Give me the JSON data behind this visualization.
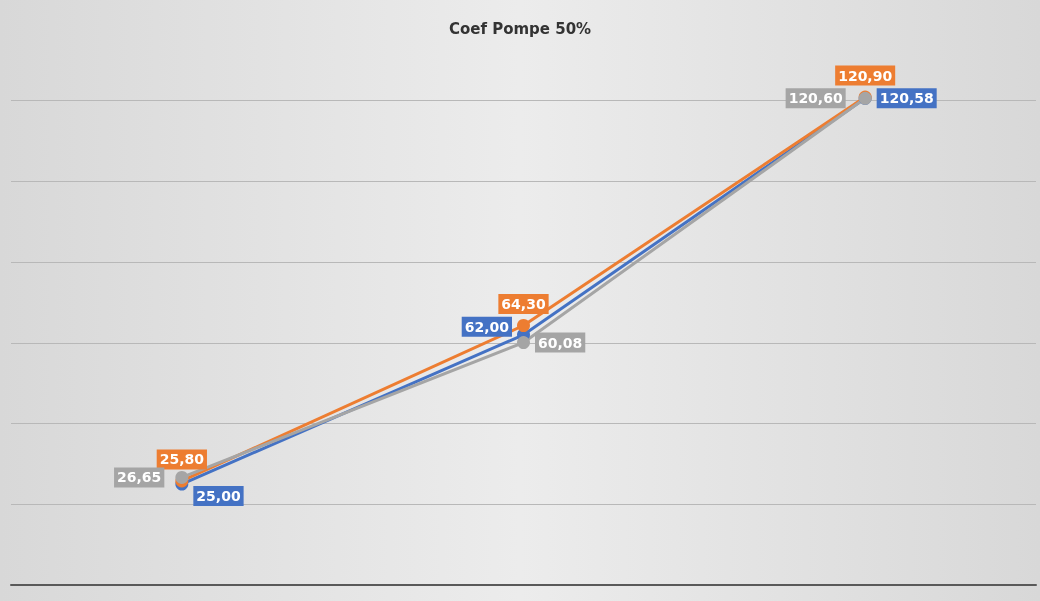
{
  "chart_data": {
    "type": "line",
    "title": "Coef Pompe 50%",
    "categories": [
      null,
      null,
      null
    ],
    "series": [
      {
        "color": "#4472c4",
        "values": [
          25.0,
          62.0,
          120.58
        ],
        "value_labels": [
          "25,00",
          "62,00",
          "120,58"
        ]
      },
      {
        "color": "#ed7d31",
        "values": [
          25.8,
          64.3,
          120.9
        ],
        "value_labels": [
          "25,80",
          "64,30",
          "120,90"
        ]
      },
      {
        "color": "#a5a5a5",
        "values": [
          26.65,
          60.08,
          120.6
        ],
        "value_labels": [
          "26,65",
          "60,08",
          "120,60"
        ]
      }
    ],
    "yticks": [
      {
        "value": 0,
        "label": null
      },
      {
        "value": 20,
        "label": null
      },
      {
        "value": 40,
        "label": null
      },
      {
        "value": 60,
        "label": null
      },
      {
        "value": 80,
        "label": null
      },
      {
        "value": 100,
        "label": null
      },
      {
        "value": 120,
        "label": null
      }
    ],
    "grid": "y",
    "marker": "circle",
    "line_style": "solid"
  }
}
